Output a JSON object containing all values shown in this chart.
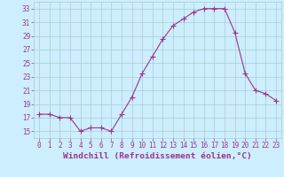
{
  "x": [
    0,
    1,
    2,
    3,
    4,
    5,
    6,
    7,
    8,
    9,
    10,
    11,
    12,
    13,
    14,
    15,
    16,
    17,
    18,
    19,
    20,
    21,
    22,
    23
  ],
  "y": [
    17.5,
    17.5,
    17,
    17,
    15,
    15.5,
    15.5,
    15,
    17.5,
    20,
    23.5,
    26,
    28.5,
    30.5,
    31.5,
    32.5,
    33,
    33,
    33,
    29.5,
    23.5,
    21,
    20.5,
    19.5
  ],
  "line_color": "#993399",
  "marker_color": "#993399",
  "bg_color": "#cceeff",
  "grid_color": "#aacccc",
  "xlabel": "Windchill (Refroidissement éolien,°C)",
  "xlabel_color": "#993399",
  "ylim": [
    14,
    34
  ],
  "xlim": [
    -0.5,
    23.5
  ],
  "yticks": [
    15,
    17,
    19,
    21,
    23,
    25,
    27,
    29,
    31,
    33
  ],
  "xticks": [
    0,
    1,
    2,
    3,
    4,
    5,
    6,
    7,
    8,
    9,
    10,
    11,
    12,
    13,
    14,
    15,
    16,
    17,
    18,
    19,
    20,
    21,
    22,
    23
  ],
  "tick_color": "#993399",
  "tick_label_fontsize": 5.5,
  "xlabel_fontsize": 6.8,
  "line_width": 0.8,
  "marker_size": 2.0
}
